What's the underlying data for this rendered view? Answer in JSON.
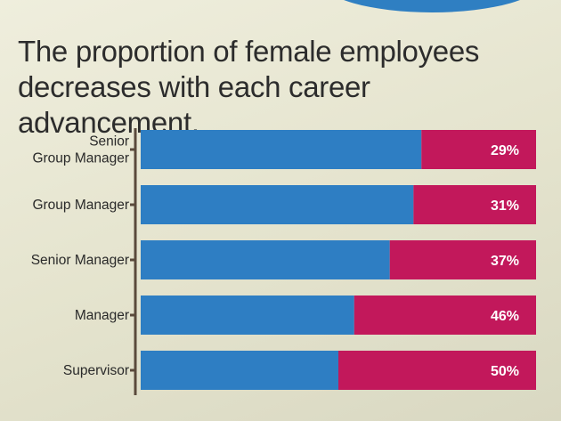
{
  "title_lines": [
    "The proportion of female employees",
    "decreases with each career advancement."
  ],
  "colors": {
    "male_bar": "#2e7ec3",
    "female_bar": "#c2185b",
    "bracket": "#5a4a3c",
    "accent_circle": "#2f7fc2"
  },
  "chart_data": {
    "type": "bar",
    "orientation": "horizontal",
    "stacked": true,
    "percent_stacked": true,
    "categories": [
      [
        "Senior",
        "Group Manager"
      ],
      [
        "Group Manager"
      ],
      [
        "Senior Manager"
      ],
      [
        "Manager"
      ],
      [
        "Supervisor"
      ]
    ],
    "series": [
      {
        "values": [
          71,
          69,
          63,
          54,
          50
        ],
        "color": "#2e7ec3"
      },
      {
        "values": [
          29,
          31,
          37,
          46,
          50
        ],
        "color": "#c2185b",
        "labels": [
          "29%",
          "31%",
          "37%",
          "46%",
          "50%"
        ]
      }
    ],
    "xlim": [
      0,
      100
    ],
    "legend": "none",
    "grid": false
  }
}
